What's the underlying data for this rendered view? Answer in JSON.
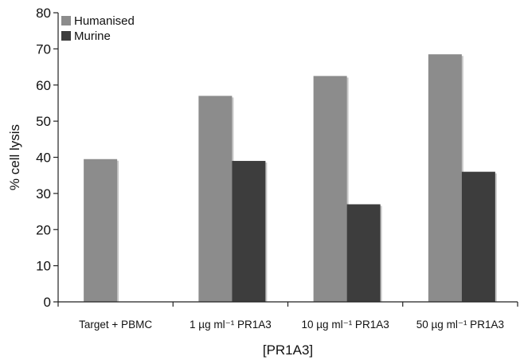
{
  "chart_data": {
    "type": "bar",
    "categories": [
      "Target + PBMC",
      "1 µg ml⁻¹ PR1A3",
      "10 µg ml⁻¹ PR1A3",
      "50 µg ml⁻¹ PR1A3"
    ],
    "series": [
      {
        "name": "Humanised",
        "values": [
          39.5,
          57,
          62.5,
          68.5
        ],
        "color": "#8c8c8c"
      },
      {
        "name": "Murine",
        "values": [
          null,
          39,
          27,
          36
        ],
        "color": "#3d3d3d"
      }
    ],
    "ylabel": "% cell lysis",
    "xlabel": "[PR1A3]",
    "ylim": [
      0,
      80
    ],
    "yticks": [
      0,
      10,
      20,
      30,
      40,
      50,
      60,
      70,
      80
    ],
    "grid": false,
    "legend": "top-left"
  }
}
